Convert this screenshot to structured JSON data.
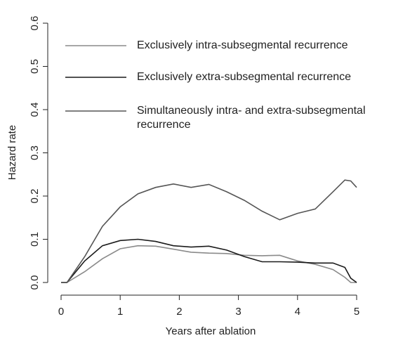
{
  "chart_data": {
    "type": "line",
    "xlabel": "Years after ablation",
    "ylabel": "Hazard rate",
    "x": [
      0,
      0.1,
      0.4,
      0.7,
      1.0,
      1.3,
      1.6,
      1.9,
      2.2,
      2.5,
      2.8,
      3.1,
      3.4,
      3.7,
      4.0,
      4.3,
      4.6,
      4.8,
      4.9,
      5.0
    ],
    "series": [
      {
        "name": "Exclusively intra-subsegmental recurrence",
        "color": "#8a8a8a",
        "values": [
          0,
          0,
          0.025,
          0.055,
          0.078,
          0.085,
          0.084,
          0.077,
          0.07,
          0.068,
          0.067,
          0.063,
          0.062,
          0.063,
          0.05,
          0.042,
          0.03,
          0.012,
          0,
          0
        ]
      },
      {
        "name": "Exclusively extra-subsegmental recurrence",
        "color": "#1a1a1a",
        "values": [
          0,
          0,
          0.05,
          0.085,
          0.097,
          0.1,
          0.095,
          0.085,
          0.082,
          0.084,
          0.075,
          0.06,
          0.048,
          0.048,
          0.047,
          0.045,
          0.045,
          0.035,
          0.01,
          0
        ]
      },
      {
        "name": "Simultaneously intra- and extra-subsegmental recurrence",
        "color": "#555555",
        "values": [
          0,
          0,
          0.06,
          0.13,
          0.175,
          0.205,
          0.22,
          0.228,
          0.22,
          0.227,
          0.21,
          0.19,
          0.165,
          0.145,
          0.16,
          0.17,
          0.21,
          0.237,
          0.235,
          0.22
        ]
      }
    ],
    "xlim": [
      0,
      5
    ],
    "xticks": [
      0,
      1,
      2,
      3,
      4,
      5
    ],
    "ylim": [
      0,
      0.6
    ],
    "yticks": [
      {
        "value": 0,
        "label": "0.0"
      },
      0.1,
      0.2,
      0.3,
      0.4,
      0.5,
      0.6
    ],
    "grid": false,
    "legend": "top"
  }
}
